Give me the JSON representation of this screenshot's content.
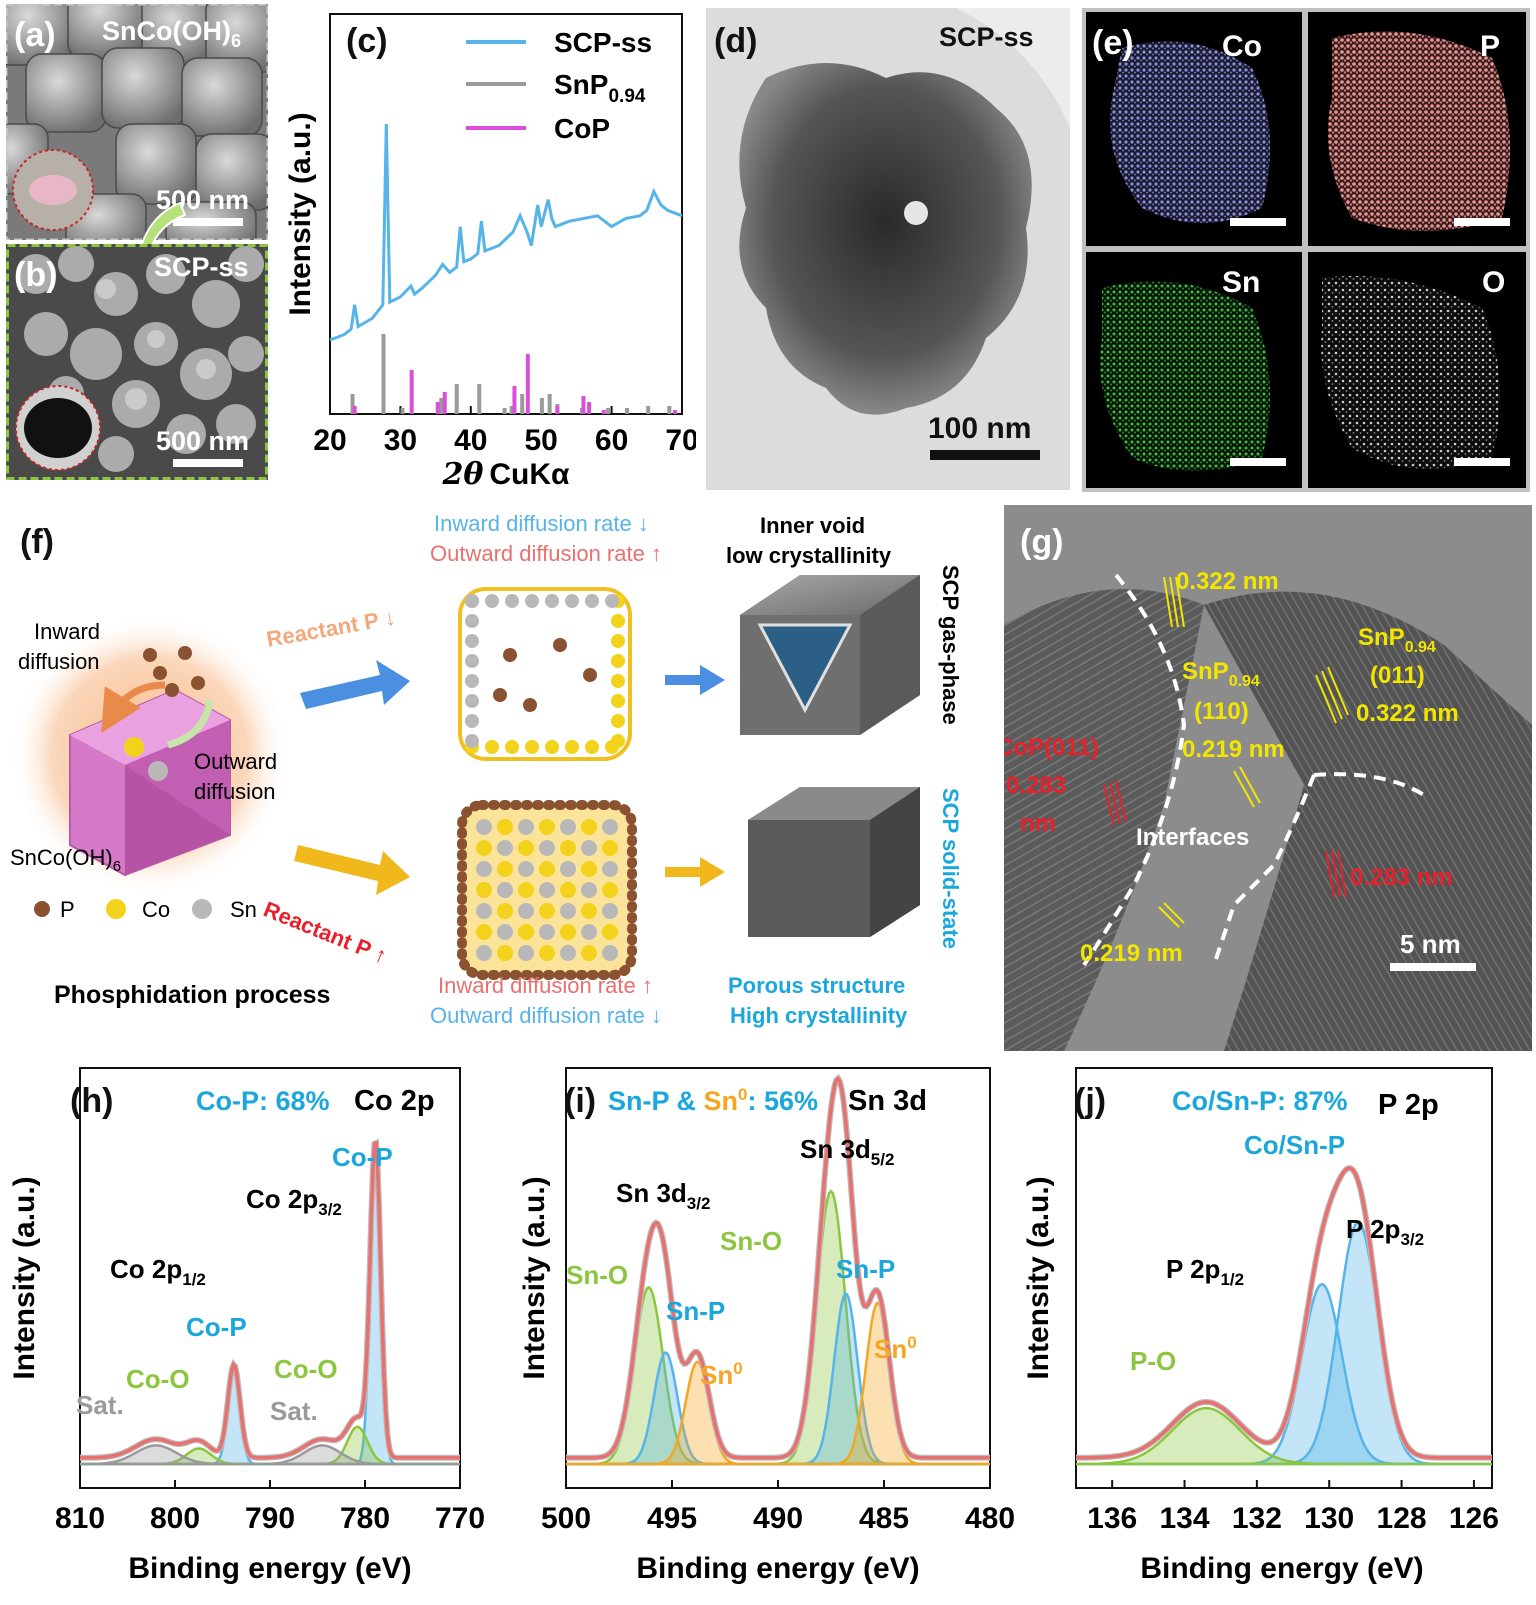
{
  "panels": {
    "a": {
      "label": "(a)",
      "title": "SnCo(OH)",
      "title_sub": "6",
      "scale": "500 nm"
    },
    "b": {
      "label": "(b)",
      "title": "SCP-ss",
      "scale": "500 nm"
    },
    "c": {
      "label": "(c)"
    },
    "d": {
      "label": "(d)",
      "title": "SCP-ss",
      "scale": "100 nm"
    },
    "e": {
      "label": "(e)",
      "elements": [
        "Co",
        "P",
        "Sn",
        "O"
      ]
    },
    "f": {
      "label": "(f)",
      "inward": "Inward",
      "inward2": "diffusion",
      "outward": "Outward",
      "outward2": "diffusion",
      "precursor": "SnCo(OH)",
      "precursor_sub": "6",
      "legend": [
        "P",
        "Co",
        "Sn"
      ],
      "process": "Phosphidation process",
      "top_in": "Inward diffusion rate ↓",
      "top_out": "Outward diffusion rate ↑",
      "top_result1": "Inner void",
      "top_result2": "low crystallinity",
      "reactant_low": "Reactant P ↓",
      "reactant_high": "Reactant P ↑",
      "bottom_in": "Inward diffusion rate ↑",
      "bottom_out": "Outward diffusion rate ↓",
      "bottom_result1": "Porous structure",
      "bottom_result2": "High crystallinity",
      "side_top": "SCP gas-phase",
      "side_bottom": "SCP solid-state"
    },
    "g": {
      "label": "(g)",
      "l1": "0.322 nm",
      "snp_left1": "SnP",
      "snp_left_sub": "0.94",
      "snp_left2": "(110)",
      "snp_left3": "0.219 nm",
      "snp_right1": "SnP",
      "snp_right_sub": "0.94",
      "snp_right2": "(011)",
      "snp_right3": "0.322 nm",
      "cop1": "CoP(011)",
      "cop2": "0.283",
      "cop3": "nm",
      "interfaces": "Interfaces",
      "l283": "0.283 nm",
      "l219": "0.219 nm",
      "scale": "5 nm"
    },
    "h": {
      "label": "(h)",
      "note_color": "Co-P: 68%",
      "note": "Co 2p"
    },
    "i": {
      "label": "(i)",
      "note_a": "Sn-P & ",
      "note_b": "Sn",
      "note_b_sup": "0",
      "note_c": ": 56%",
      "note": "Sn 3d"
    },
    "j": {
      "label": "(j)",
      "note_color": "Co/Sn-P: 87%",
      "note": "P 2p"
    }
  },
  "colors": {
    "blue": "#56b4e9",
    "cyan": "#1ba7dc",
    "green": "#8cc63f",
    "orange": "#f5a623",
    "red": "#e8706f",
    "gray": "#9a9a9a",
    "magenta": "#d94fd9",
    "yellow": "#f2e600",
    "annot_red": "#e8202a"
  },
  "chart_data": [
    {
      "id": "c",
      "type": "line",
      "xlabel_symbol": "2θ",
      "xlabel": "CuKα",
      "ylabel": "Intensity (a.u.)",
      "xlim": [
        20,
        70
      ],
      "xticks": [
        20,
        30,
        40,
        50,
        60,
        70
      ],
      "series": [
        {
          "name": "SCP-ss",
          "x": [
            20,
            22,
            23,
            23.5,
            24,
            26,
            27.5,
            28,
            28.5,
            30,
            31.5,
            32,
            33,
            35,
            36,
            37,
            38,
            38.5,
            39,
            40,
            41,
            41.5,
            42,
            44,
            46,
            47,
            48,
            48.6,
            49.5,
            50,
            51,
            51.5,
            52,
            54,
            56,
            58,
            60,
            62,
            64,
            65,
            66,
            67,
            68,
            70
          ],
          "y": [
            0.2,
            0.22,
            0.24,
            0.33,
            0.25,
            0.28,
            0.33,
            1.0,
            0.34,
            0.36,
            0.4,
            0.37,
            0.39,
            0.44,
            0.48,
            0.45,
            0.47,
            0.62,
            0.49,
            0.5,
            0.52,
            0.64,
            0.53,
            0.55,
            0.6,
            0.66,
            0.6,
            0.55,
            0.7,
            0.62,
            0.72,
            0.65,
            0.62,
            0.64,
            0.65,
            0.66,
            0.62,
            0.65,
            0.66,
            0.68,
            0.75,
            0.7,
            0.68,
            0.66
          ]
        },
        {
          "name": "SnP",
          "name_sub": "0.94",
          "type": "sticks",
          "x": [
            23.2,
            27.6,
            30.3,
            35.8,
            38.0,
            41.2,
            44.8,
            45.8,
            47.3,
            50.1,
            51.2,
            52.3,
            55.8,
            59.5,
            62.2,
            65.2,
            68.2
          ],
          "y": [
            0.1,
            0.4,
            0.03,
            0.08,
            0.15,
            0.15,
            0.03,
            0.04,
            0.1,
            0.08,
            0.1,
            0.05,
            0.03,
            0.03,
            0.03,
            0.04,
            0.04
          ]
        },
        {
          "name": "CoP",
          "type": "sticks",
          "x": [
            23.5,
            31.6,
            35.3,
            36.3,
            46.2,
            48.1,
            52.3,
            56.0,
            56.8,
            58.9,
            69.0
          ],
          "y": [
            0.04,
            0.22,
            0.06,
            0.11,
            0.14,
            0.3,
            0.04,
            0.09,
            0.06,
            0.02,
            0.02
          ]
        }
      ]
    },
    {
      "id": "h",
      "type": "area",
      "xlabel": "Binding energy (eV)",
      "ylabel": "Intensity (a.u.)",
      "xlim": [
        810,
        770
      ],
      "xticks": [
        810,
        800,
        790,
        780,
        770
      ],
      "reversed": true,
      "peaks": [
        {
          "name": "Co-P",
          "center": 778.9,
          "height": 1.0,
          "fwhm": 1.3
        },
        {
          "name": "Co-O",
          "center": 780.8,
          "height": 0.12,
          "fwhm": 2.5
        },
        {
          "name": "Sat.",
          "center": 784.5,
          "height": 0.06,
          "fwhm": 4.5
        },
        {
          "name": "Co-P",
          "center": 793.8,
          "height": 0.3,
          "fwhm": 1.5
        },
        {
          "name": "Co-O",
          "center": 797.5,
          "height": 0.05,
          "fwhm": 3.0
        },
        {
          "name": "Sat.",
          "center": 802.0,
          "height": 0.06,
          "fwhm": 5.0
        }
      ],
      "annotations": [
        "Co-P",
        "Co 2p",
        "3/2",
        "Co 2p",
        "1/2",
        "Co-P",
        "Co-O",
        "Co-O",
        "Sat.",
        "Sat."
      ]
    },
    {
      "id": "i",
      "type": "area",
      "xlabel": "Binding energy (eV)",
      "ylabel": "Intensity (a.u.)",
      "xlim": [
        500,
        480
      ],
      "xticks": [
        500,
        495,
        490,
        485,
        480
      ],
      "reversed": true,
      "peaks": [
        {
          "name": "Sn-O",
          "center": 487.5,
          "height": 0.88,
          "fwhm": 1.6
        },
        {
          "name": "Sn-P",
          "center": 486.8,
          "height": 0.55,
          "fwhm": 1.3
        },
        {
          "name": "Sn0",
          "center": 485.3,
          "height": 0.52,
          "fwhm": 1.3
        },
        {
          "name": "Sn-O",
          "center": 496.1,
          "height": 0.57,
          "fwhm": 1.6
        },
        {
          "name": "Sn-P",
          "center": 495.3,
          "height": 0.36,
          "fwhm": 1.3
        },
        {
          "name": "Sn0",
          "center": 493.8,
          "height": 0.33,
          "fwhm": 1.3
        }
      ],
      "annotations": [
        "Sn 3d",
        "5/2",
        "Sn 3d",
        "3/2",
        "Sn-O",
        "Sn-P",
        "Sn",
        "Sn-O",
        "Sn-P",
        "Sn"
      ]
    },
    {
      "id": "j",
      "type": "area",
      "xlabel": "Binding energy (eV)",
      "ylabel": "Intensity (a.u.)",
      "xlim": [
        137,
        125.5
      ],
      "xticks": [
        136,
        134,
        132,
        130,
        128,
        126
      ],
      "reversed": true,
      "peaks": [
        {
          "name": "P 2p3/2",
          "center": 129.2,
          "height": 0.78,
          "fwhm": 1.3
        },
        {
          "name": "P 2p1/2",
          "center": 130.2,
          "height": 0.58,
          "fwhm": 1.3
        },
        {
          "name": "P-O",
          "center": 133.4,
          "height": 0.18,
          "fwhm": 2.2
        }
      ],
      "annotations": [
        "Co/Sn-P",
        "P 2p",
        "3/2",
        "P 2p",
        "1/2",
        "P-O"
      ]
    }
  ]
}
